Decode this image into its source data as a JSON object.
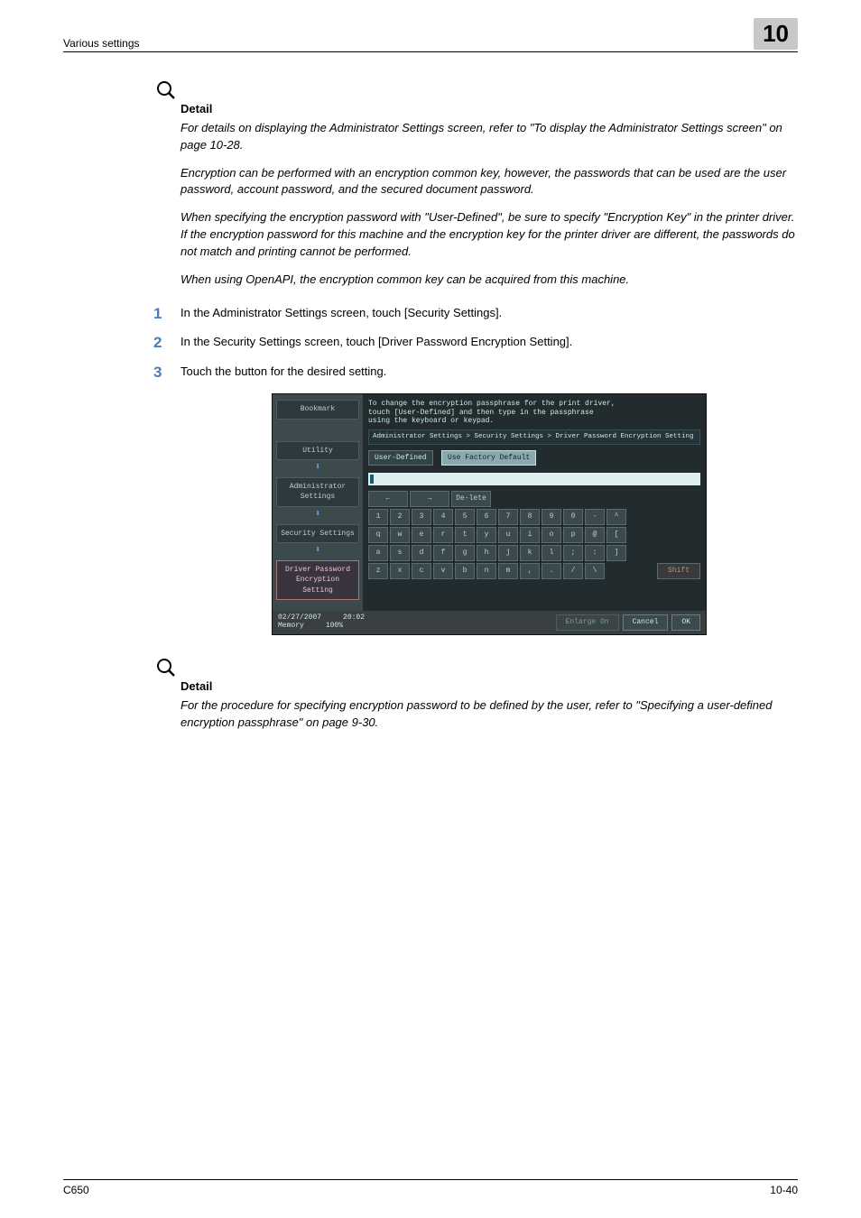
{
  "header": {
    "section_title": "Various settings",
    "chapter_number": "10"
  },
  "detail1": {
    "label": "Detail",
    "p1": "For details on displaying the Administrator Settings screen, refer to \"To display the Administrator Settings screen\" on page 10-28.",
    "p2": "Encryption can be performed with an encryption common key, however, the passwords that can be used are the user password, account password, and the secured document password.",
    "p3": "When specifying the encryption password with \"User-Defined\", be sure to specify \"Encryption Key\" in the printer driver. If the encryption password for this machine and the encryption key for the printer driver are different, the passwords do not match and printing cannot be performed.",
    "p4": "When using OpenAPI, the encryption common key can be acquired from this machine."
  },
  "steps": {
    "s1": "In the Administrator Settings screen, touch [Security Settings].",
    "s2": "In the Security Settings screen, touch [Driver Password Encryption Setting].",
    "s3": "Touch the button for the desired setting."
  },
  "screenshot": {
    "msg_l1": "To change the encryption passphrase for the print driver,",
    "msg_l2": "touch [User-Defined] and then type in the passphrase",
    "msg_l3": "using the keyboard or keypad.",
    "path": "Administrator Settings > Security Settings > Driver Password Encryption Setting",
    "btn_user": "User-Defined",
    "btn_factory": "Use Factory Default",
    "nav": {
      "bookmark": "Bookmark",
      "utility": "Utility",
      "admin": "Administrator Settings",
      "security": "Security Settings",
      "driver": "Driver Password Encryption Setting"
    },
    "kb": {
      "delete": "De-lete",
      "arrow_l": "←",
      "arrow_r": "→",
      "row1": [
        "1",
        "2",
        "3",
        "4",
        "5",
        "6",
        "7",
        "8",
        "9",
        "0",
        "-",
        "^"
      ],
      "row2": [
        "q",
        "w",
        "e",
        "r",
        "t",
        "y",
        "u",
        "i",
        "o",
        "p",
        "@",
        "["
      ],
      "row3": [
        "a",
        "s",
        "d",
        "f",
        "g",
        "h",
        "j",
        "k",
        "l",
        ";",
        ":",
        "]"
      ],
      "row4": [
        "z",
        "x",
        "c",
        "v",
        "b",
        "n",
        "m",
        ",",
        ".",
        "/",
        "\\"
      ],
      "shift": "Shift"
    },
    "footer": {
      "date": "02/27/2007",
      "time": "20:02",
      "mem_label": "Memory",
      "mem_val": "100%",
      "enlarge": "Enlarge On",
      "cancel": "Cancel",
      "ok": "OK"
    },
    "colors": {
      "bg": "#222c2e",
      "panel": "#3d4a4d",
      "key": "#3a4a4e",
      "sel": "#8aa8b0"
    }
  },
  "detail2": {
    "label": "Detail",
    "p1": "For the procedure for specifying encryption password to be defined by the user, refer to \"Specifying a user-defined encryption passphrase\" on page 9-30."
  },
  "footer": {
    "model": "C650",
    "page": "10-40"
  }
}
